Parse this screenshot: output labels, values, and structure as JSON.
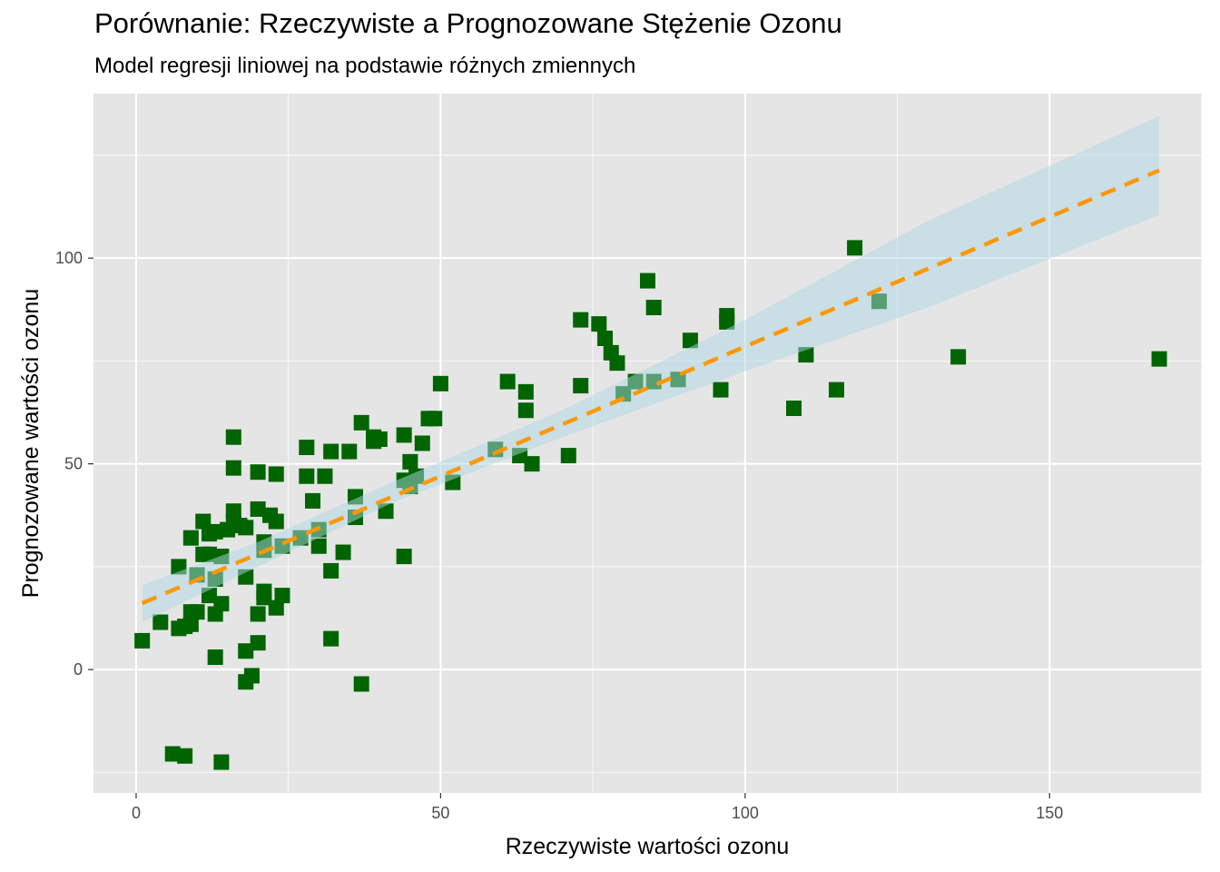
{
  "chart_data": {
    "type": "scatter",
    "title": "Porównanie: Rzeczywiste a Prognozowane Stężenie Ozonu",
    "subtitle": "Model regresji liniowej na podstawie różnych zmiennych",
    "xlabel": "Rzeczywiste wartości ozonu",
    "ylabel": "Prognozowane wartości ozonu",
    "xlim": [
      -7,
      175
    ],
    "ylim": [
      -30,
      140
    ],
    "x_ticks": [
      "0",
      "50",
      "100",
      "150"
    ],
    "y_ticks": [
      "0",
      "50",
      "100"
    ],
    "x_tick_values": [
      0,
      50,
      100,
      150
    ],
    "y_tick_values": [
      0,
      50,
      100
    ],
    "grid": true,
    "colors": {
      "panel": "#e5e5e5",
      "grid": "#ffffff",
      "points": "#006400",
      "fit_line": "#ff9800",
      "confidence_band": "#add8e6"
    },
    "fit_line": {
      "style": "dashed",
      "intercept": 15.5,
      "slope": 0.63
    },
    "confidence_band": [
      {
        "x": 1,
        "lower": 11.5,
        "upper": 20.5
      },
      {
        "x": 20,
        "lower": 25.0,
        "upper": 31.0
      },
      {
        "x": 42,
        "lower": 40.5,
        "upper": 45.5
      },
      {
        "x": 70,
        "lower": 56.5,
        "upper": 63.0
      },
      {
        "x": 100,
        "lower": 72.5,
        "upper": 85.0
      },
      {
        "x": 130,
        "lower": 88.0,
        "upper": 109.0
      },
      {
        "x": 168,
        "lower": 110.5,
        "upper": 134.5
      }
    ],
    "points": [
      {
        "x": 1,
        "y": 7
      },
      {
        "x": 4,
        "y": 11.5
      },
      {
        "x": 6,
        "y": -20.5
      },
      {
        "x": 7,
        "y": 25
      },
      {
        "x": 7,
        "y": 10
      },
      {
        "x": 8,
        "y": -21
      },
      {
        "x": 8,
        "y": 10.5
      },
      {
        "x": 9,
        "y": 32
      },
      {
        "x": 9,
        "y": 14
      },
      {
        "x": 9,
        "y": 11
      },
      {
        "x": 10,
        "y": 23
      },
      {
        "x": 10,
        "y": 14
      },
      {
        "x": 11,
        "y": 36
      },
      {
        "x": 11,
        "y": 28
      },
      {
        "x": 12,
        "y": 33
      },
      {
        "x": 12,
        "y": 28
      },
      {
        "x": 12,
        "y": 18
      },
      {
        "x": 13,
        "y": 33.5
      },
      {
        "x": 13,
        "y": 22
      },
      {
        "x": 13,
        "y": 13.5
      },
      {
        "x": 13,
        "y": 3
      },
      {
        "x": 14,
        "y": 16
      },
      {
        "x": 14,
        "y": 27.5
      },
      {
        "x": 14,
        "y": -22.5
      },
      {
        "x": 15,
        "y": 34
      },
      {
        "x": 16,
        "y": 56.5
      },
      {
        "x": 16,
        "y": 49
      },
      {
        "x": 16,
        "y": 38.5
      },
      {
        "x": 16,
        "y": 36
      },
      {
        "x": 17,
        "y": 35
      },
      {
        "x": 18,
        "y": 34.5
      },
      {
        "x": 18,
        "y": 22.5
      },
      {
        "x": 18,
        "y": 4.5
      },
      {
        "x": 18,
        "y": -3
      },
      {
        "x": 19,
        "y": -1.5
      },
      {
        "x": 20,
        "y": 48
      },
      {
        "x": 20,
        "y": 39
      },
      {
        "x": 20,
        "y": 13.5
      },
      {
        "x": 20,
        "y": 6.5
      },
      {
        "x": 21,
        "y": 31
      },
      {
        "x": 21,
        "y": 29
      },
      {
        "x": 21,
        "y": 19
      },
      {
        "x": 21,
        "y": 17.5
      },
      {
        "x": 22,
        "y": 37.5
      },
      {
        "x": 23,
        "y": 47.5
      },
      {
        "x": 23,
        "y": 36
      },
      {
        "x": 23,
        "y": 15
      },
      {
        "x": 24,
        "y": 18
      },
      {
        "x": 24,
        "y": 30
      },
      {
        "x": 27,
        "y": 32
      },
      {
        "x": 28,
        "y": 54
      },
      {
        "x": 28,
        "y": 47
      },
      {
        "x": 29,
        "y": 41
      },
      {
        "x": 30,
        "y": 34
      },
      {
        "x": 30,
        "y": 30
      },
      {
        "x": 31,
        "y": 47
      },
      {
        "x": 32,
        "y": 53
      },
      {
        "x": 32,
        "y": 24
      },
      {
        "x": 32,
        "y": 7.5
      },
      {
        "x": 34,
        "y": 28.5
      },
      {
        "x": 35,
        "y": 53
      },
      {
        "x": 36,
        "y": 42
      },
      {
        "x": 36,
        "y": 37
      },
      {
        "x": 37,
        "y": 60
      },
      {
        "x": 37,
        "y": -3.5
      },
      {
        "x": 39,
        "y": 56.5
      },
      {
        "x": 39,
        "y": 55.5
      },
      {
        "x": 40,
        "y": 56
      },
      {
        "x": 41,
        "y": 38.5
      },
      {
        "x": 44,
        "y": 57
      },
      {
        "x": 44,
        "y": 46
      },
      {
        "x": 44,
        "y": 27.5
      },
      {
        "x": 45,
        "y": 50.5
      },
      {
        "x": 45,
        "y": 44.5
      },
      {
        "x": 46,
        "y": 47
      },
      {
        "x": 47,
        "y": 55
      },
      {
        "x": 48,
        "y": 61
      },
      {
        "x": 49,
        "y": 61
      },
      {
        "x": 50,
        "y": 69.5
      },
      {
        "x": 52,
        "y": 45.5
      },
      {
        "x": 59,
        "y": 53.5
      },
      {
        "x": 61,
        "y": 70
      },
      {
        "x": 63,
        "y": 52
      },
      {
        "x": 64,
        "y": 67.5
      },
      {
        "x": 64,
        "y": 63
      },
      {
        "x": 65,
        "y": 50
      },
      {
        "x": 71,
        "y": 52
      },
      {
        "x": 73,
        "y": 85
      },
      {
        "x": 73,
        "y": 69
      },
      {
        "x": 76,
        "y": 84
      },
      {
        "x": 77,
        "y": 80.5
      },
      {
        "x": 78,
        "y": 77
      },
      {
        "x": 79,
        "y": 74.5
      },
      {
        "x": 80,
        "y": 67
      },
      {
        "x": 82,
        "y": 70
      },
      {
        "x": 84,
        "y": 94.5
      },
      {
        "x": 85,
        "y": 88
      },
      {
        "x": 85,
        "y": 70
      },
      {
        "x": 89,
        "y": 70.5
      },
      {
        "x": 91,
        "y": 80
      },
      {
        "x": 96,
        "y": 68
      },
      {
        "x": 97,
        "y": 86
      },
      {
        "x": 97,
        "y": 84.5
      },
      {
        "x": 108,
        "y": 63.5
      },
      {
        "x": 110,
        "y": 76.5
      },
      {
        "x": 115,
        "y": 68
      },
      {
        "x": 118,
        "y": 102.5
      },
      {
        "x": 122,
        "y": 89.5
      },
      {
        "x": 135,
        "y": 76
      },
      {
        "x": 168,
        "y": 75.5
      }
    ]
  }
}
